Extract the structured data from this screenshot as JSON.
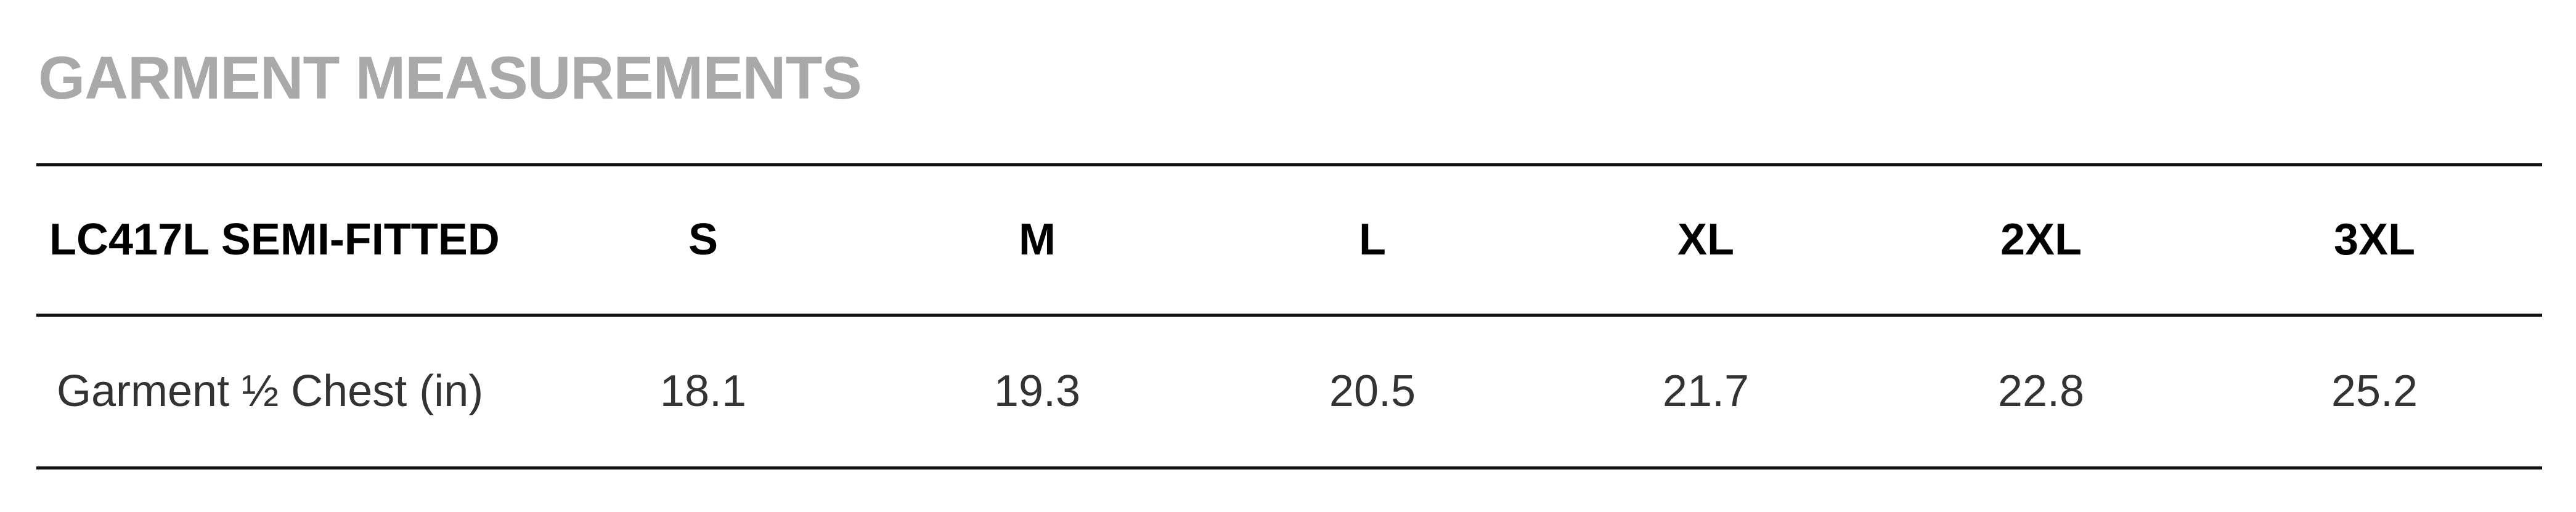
{
  "title": "GARMENT MEASUREMENTS",
  "table": {
    "headers": [
      "LC417L SEMI-FITTED",
      "S",
      "M",
      "L",
      "XL",
      "2XL",
      "3XL"
    ],
    "rows": [
      [
        "Garment ½ Chest (in)",
        "18.1",
        "19.3",
        "20.5",
        "21.7",
        "22.8",
        "25.2"
      ]
    ]
  }
}
